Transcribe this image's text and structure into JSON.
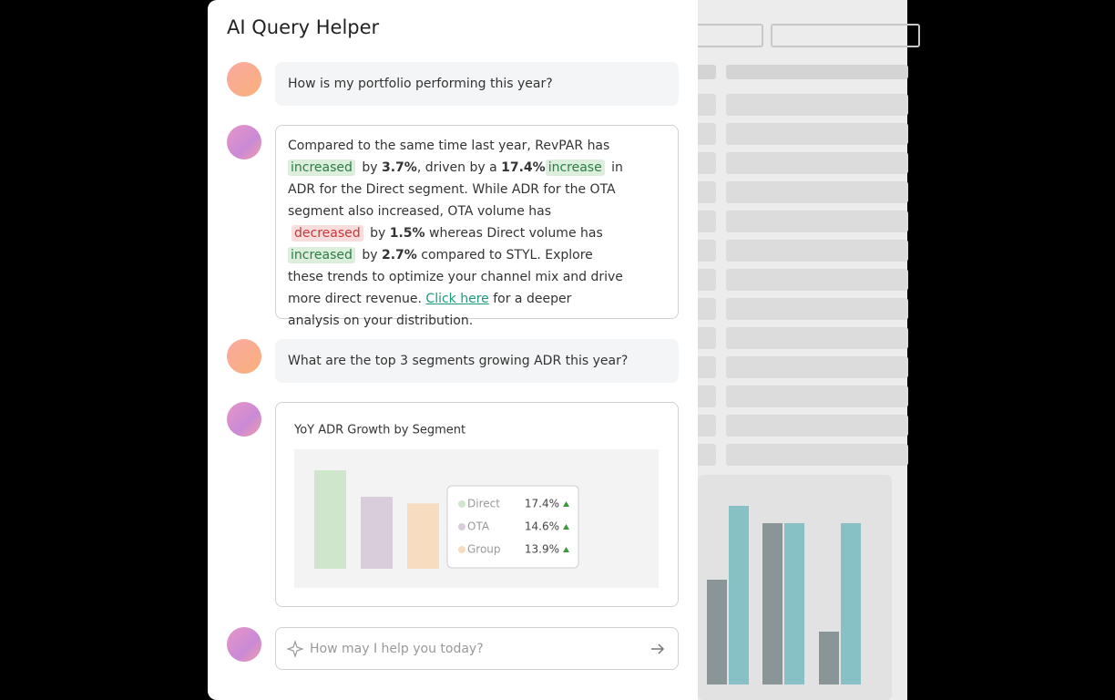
{
  "header": {
    "title": "AI Query Helper"
  },
  "messages": [
    {
      "role": "user",
      "text": "How is my portfolio performing this year?"
    },
    {
      "role": "assistant",
      "segments": [
        {
          "text": "Compared to the same time last year, RevPAR has ",
          "style": "plain"
        },
        {
          "text": "increased",
          "style": "up"
        },
        {
          "text": " by ",
          "style": "plain"
        },
        {
          "text": "3.7%",
          "style": "bold"
        },
        {
          "text": ", driven by a ",
          "style": "plain"
        },
        {
          "text": "17.4%",
          "style": "bold"
        },
        {
          "text": "increase",
          "style": "up"
        },
        {
          "text": " in ADR for the Direct segment. While ADR for the OTA segment also increased, OTA volume has ",
          "style": "plain"
        },
        {
          "text": "decreased",
          "style": "down"
        },
        {
          "text": " by ",
          "style": "plain"
        },
        {
          "text": "1.5%",
          "style": "bold"
        },
        {
          "text": " whereas Direct volume has ",
          "style": "plain"
        },
        {
          "text": "increased",
          "style": "up"
        },
        {
          "text": " by ",
          "style": "plain"
        },
        {
          "text": "2.7%",
          "style": "bold"
        },
        {
          "text": " compared to STYL. Explore these trends to optimize your channel mix and drive more direct revenue. ",
          "style": "plain"
        },
        {
          "text": "Click here",
          "style": "link"
        },
        {
          "text": " for a deeper analysis on your distribution.",
          "style": "plain"
        }
      ]
    },
    {
      "role": "user",
      "text": "What are the top 3 segments growing ADR this year?"
    }
  ],
  "chart_data": {
    "type": "bar",
    "title": "YoY ADR Growth by Segment",
    "categories": [
      "Direct",
      "OTA",
      "Group"
    ],
    "values": [
      17.4,
      14.6,
      13.9
    ],
    "value_labels": [
      "17.4%",
      "14.6%",
      "13.9%"
    ],
    "colors": [
      "#cfe6cd",
      "#d9ccdb",
      "#f8dcc0"
    ],
    "ylim": [
      7,
      17.4
    ]
  },
  "input": {
    "placeholder": "How may I help you today?"
  }
}
